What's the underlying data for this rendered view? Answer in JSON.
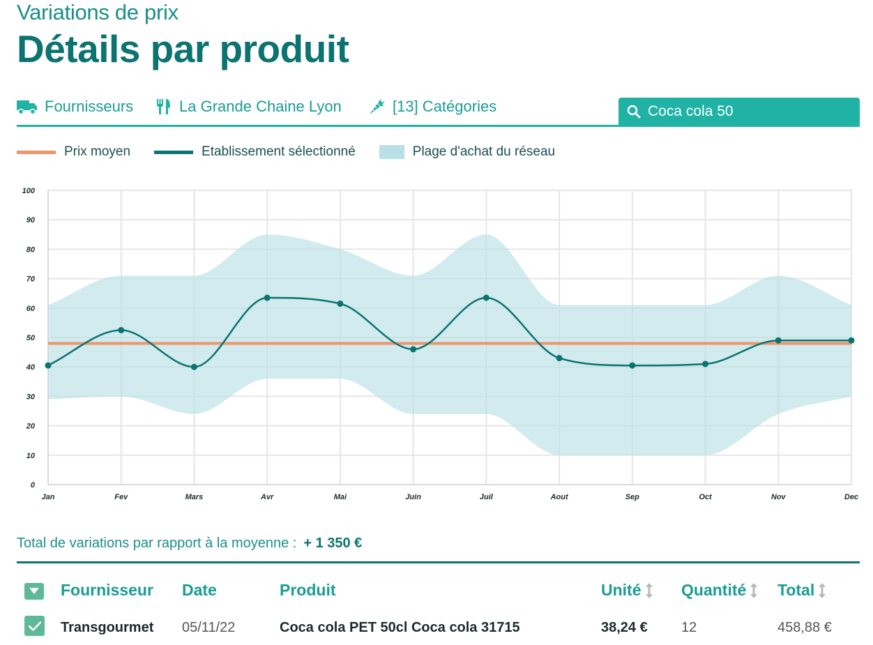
{
  "header": {
    "subtitle": "Variations de prix",
    "title": "Détails par produit"
  },
  "filters": {
    "supplier": {
      "label": "Fournisseurs",
      "icon": "truck-icon"
    },
    "establishment": {
      "label": "La Grande Chaine Lyon",
      "icon": "fork-knife-icon"
    },
    "categories": {
      "label": "[13] Catégories",
      "icon": "carrot-icon"
    },
    "search": {
      "value": "Coca cola 50",
      "icon": "search-icon"
    }
  },
  "legend": {
    "avg": {
      "label": "Prix moyen",
      "color": "#f0956a"
    },
    "selected": {
      "label": "Etablissement sélectionné",
      "color": "#0b7370"
    },
    "range": {
      "label": "Plage d'achat du réseau",
      "color": "#b9e0e6"
    }
  },
  "chart_data": {
    "type": "line",
    "categories": [
      "Jan",
      "Fev",
      "Mars",
      "Avr",
      "Mai",
      "Juin",
      "Juil",
      "Aout",
      "Sep",
      "Oct",
      "Nov",
      "Dec"
    ],
    "series": [
      {
        "name": "Etablissement sélectionné",
        "values": [
          40.5,
          52.5,
          40,
          63.5,
          61.5,
          46,
          63.5,
          43,
          40.5,
          41,
          49,
          49
        ]
      },
      {
        "name": "Prix moyen",
        "values": [
          48,
          48,
          48,
          48,
          48,
          48,
          48,
          48,
          48,
          48,
          48,
          48
        ]
      }
    ],
    "range_low": [
      29,
      30,
      24,
      36,
      36,
      24,
      24,
      10,
      10,
      10,
      24,
      30
    ],
    "range_high": [
      61,
      71,
      71,
      85,
      80,
      71,
      85,
      61,
      61,
      61,
      71,
      61
    ],
    "yticks": [
      0,
      10,
      20,
      30,
      40,
      50,
      60,
      70,
      80,
      90,
      100
    ],
    "ylim": [
      0,
      100
    ],
    "grid": true,
    "title": "",
    "xlabel": "",
    "ylabel": ""
  },
  "summary": {
    "label": "Total de variations par rapport à la moyenne :",
    "value": "+ 1 350 €"
  },
  "table": {
    "columns": [
      "Fournisseur",
      "Date",
      "Produit",
      "Unité",
      "Quantité",
      "Total"
    ],
    "rows": [
      {
        "supplier": "Transgourmet",
        "date": "05/11/22",
        "product": "Coca cola PET 50cl Coca cola 31715",
        "unit": "38,24 €",
        "quantity": "12",
        "total": "458,88 €"
      }
    ]
  }
}
